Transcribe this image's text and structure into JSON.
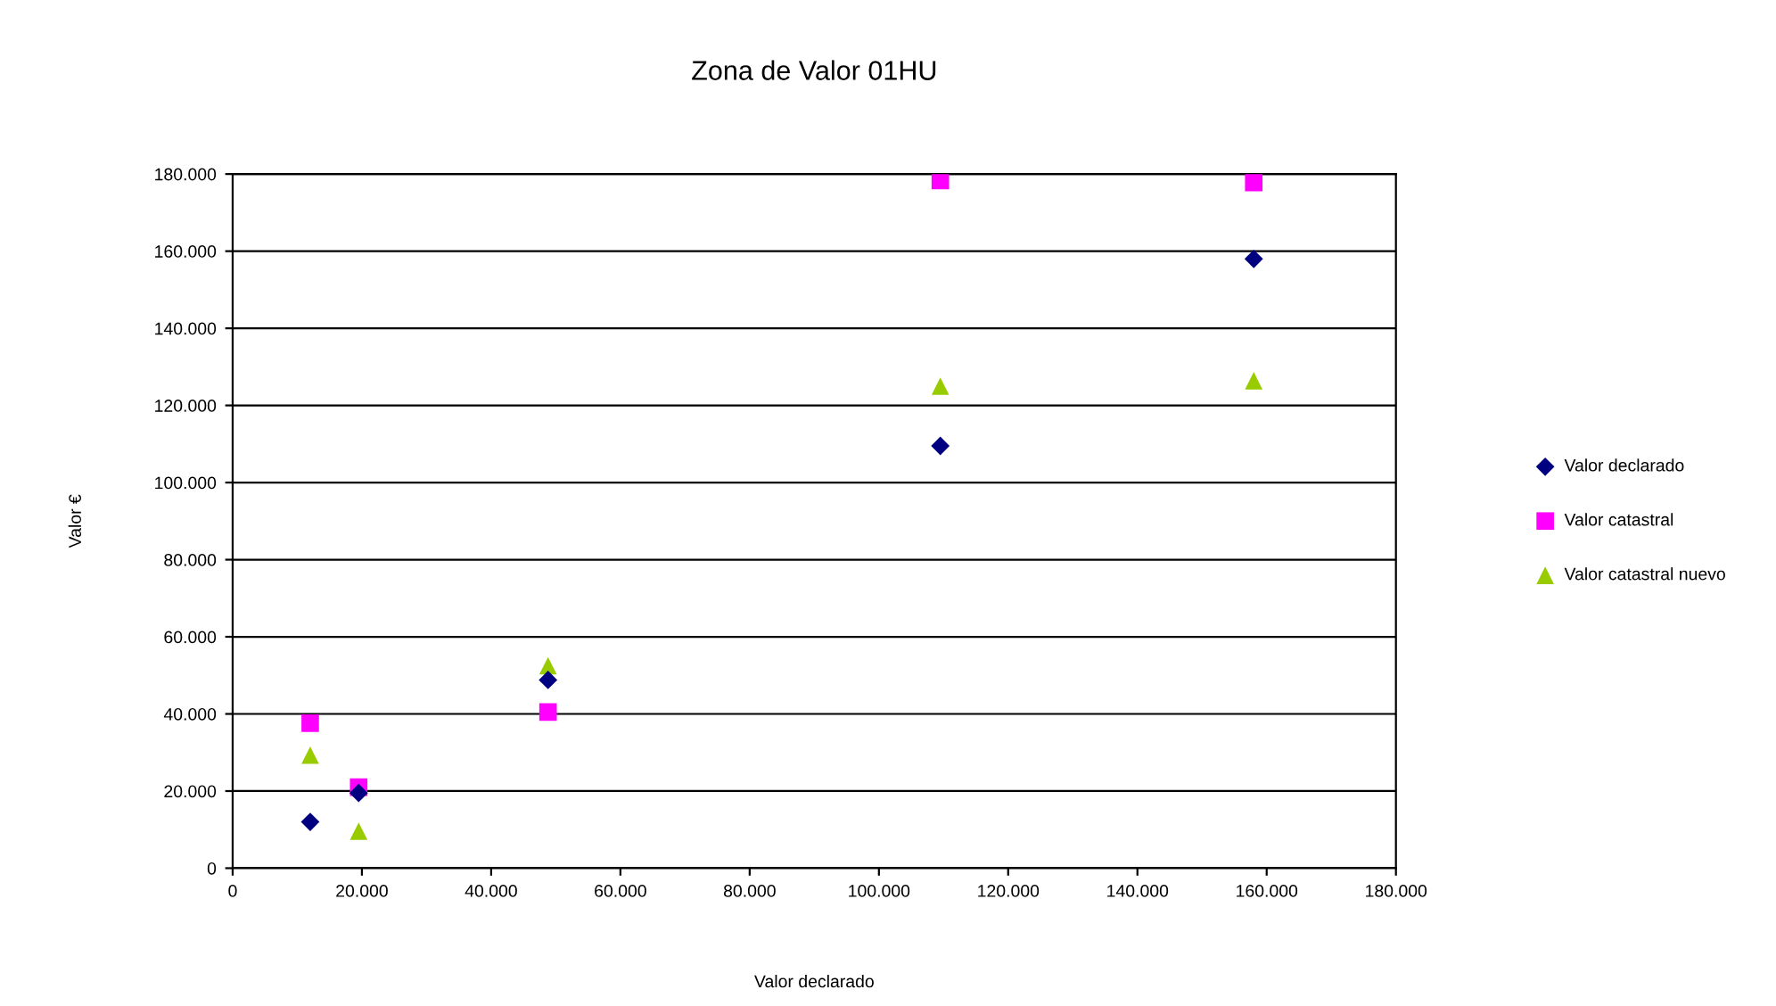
{
  "chart_data": {
    "type": "scatter",
    "title": "Zona de Valor 01HU",
    "xlabel": "Valor declarado",
    "ylabel": "Valor €",
    "series": [
      {
        "name": "Valor declarado",
        "color": "#000080",
        "marker": "diamond",
        "x": [
          12000,
          19500,
          48800,
          109500,
          158000
        ],
        "values": [
          12000,
          19500,
          48800,
          109500,
          158000
        ]
      },
      {
        "name": "Valor catastral",
        "color": "#ff00ff",
        "marker": "square",
        "x": [
          12000,
          19500,
          48800,
          109500,
          158000
        ],
        "values": [
          37600,
          21000,
          40500,
          178300,
          177800
        ]
      },
      {
        "name": "Valor catastral nuevo",
        "color": "#99cc00",
        "marker": "triangle",
        "x": [
          12000,
          19500,
          48800,
          109500,
          158000
        ],
        "values": [
          29300,
          9600,
          52500,
          125000,
          126400
        ]
      }
    ],
    "xlim": [
      0,
      180000
    ],
    "ylim": [
      0,
      180000
    ],
    "xticks": [
      0,
      {
        "value": 20000,
        "label": "20.000"
      },
      {
        "value": 40000,
        "label": "40.000"
      },
      {
        "value": 60000,
        "label": "60.000"
      },
      {
        "value": 80000,
        "label": "80.000"
      },
      {
        "value": 100000,
        "label": "100.000"
      },
      {
        "value": 120000,
        "label": "120.000"
      },
      {
        "value": 140000,
        "label": "140.000"
      },
      {
        "value": 160000,
        "label": "160.000"
      },
      {
        "value": 180000,
        "label": "180.000"
      }
    ],
    "yticks": [
      0,
      {
        "value": 20000,
        "label": "20.000"
      },
      {
        "value": 40000,
        "label": "40.000"
      },
      {
        "value": 60000,
        "label": "60.000"
      },
      {
        "value": 80000,
        "label": "80.000"
      },
      {
        "value": 100000,
        "label": "100.000"
      },
      {
        "value": 120000,
        "label": "120.000"
      },
      {
        "value": 140000,
        "label": "140.000"
      },
      {
        "value": 160000,
        "label": "160.000"
      },
      {
        "value": 180000,
        "label": "180.000"
      }
    ],
    "grid": "y",
    "legend": "right"
  }
}
